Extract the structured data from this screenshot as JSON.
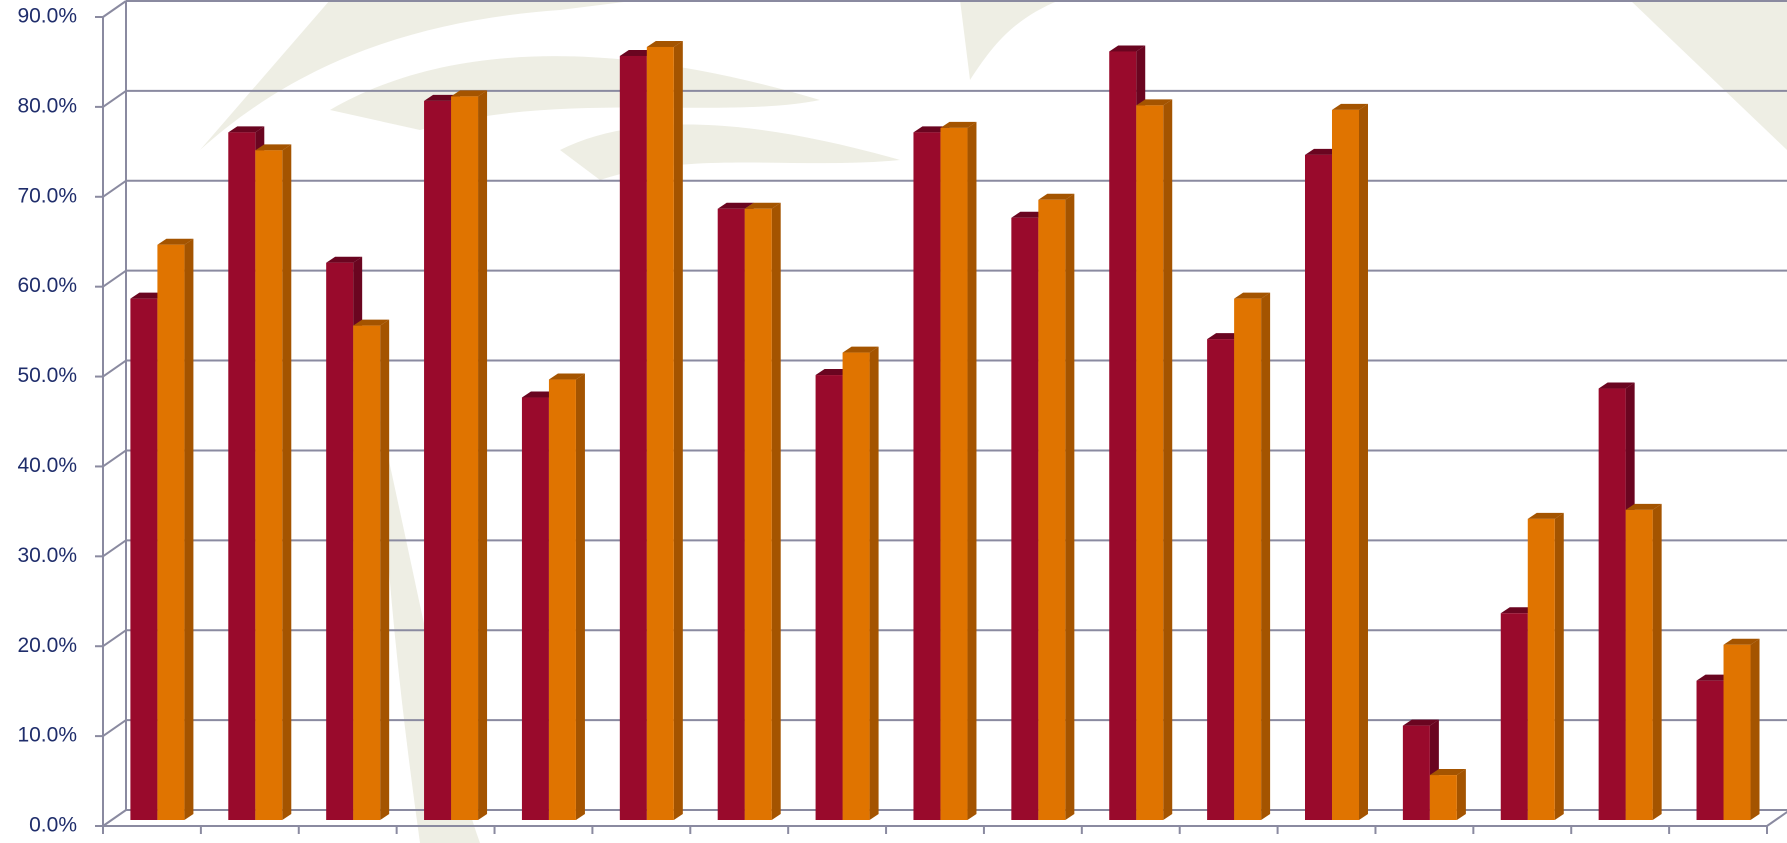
{
  "chart_data": {
    "type": "bar3d",
    "categories": [
      null,
      null,
      null,
      null,
      null,
      null,
      null,
      null,
      null,
      null,
      null,
      null,
      null,
      null,
      null,
      null,
      null
    ],
    "series": [
      {
        "color": "#990a2c",
        "side_color": "#6a0520",
        "values": [
          58,
          76.5,
          62,
          80,
          47,
          85,
          68,
          49.5,
          76.5,
          67,
          85.5,
          53.5,
          74,
          10.5,
          23,
          48,
          15.5
        ]
      },
      {
        "color": "#e07400",
        "side_color": "#a45400",
        "values": [
          64,
          74.5,
          55,
          80.5,
          49,
          86,
          68,
          52,
          77,
          69,
          79.5,
          58,
          79,
          5,
          33.5,
          34.5,
          19.5
        ]
      }
    ],
    "ylim": [
      0,
      90
    ],
    "yticks": [
      {
        "value": 0,
        "label": "0.0%"
      },
      {
        "value": 10,
        "label": "10.0%"
      },
      {
        "value": 20,
        "label": "20.0%"
      },
      {
        "value": 30,
        "label": "30.0%"
      },
      {
        "value": 40,
        "label": "40.0%"
      },
      {
        "value": 50,
        "label": "50.0%"
      },
      {
        "value": 60,
        "label": "60.0%"
      },
      {
        "value": 70,
        "label": "70.0%"
      },
      {
        "value": 80,
        "label": "80.0%"
      },
      {
        "value": 90,
        "label": "90.0%"
      }
    ],
    "grid": true
  }
}
